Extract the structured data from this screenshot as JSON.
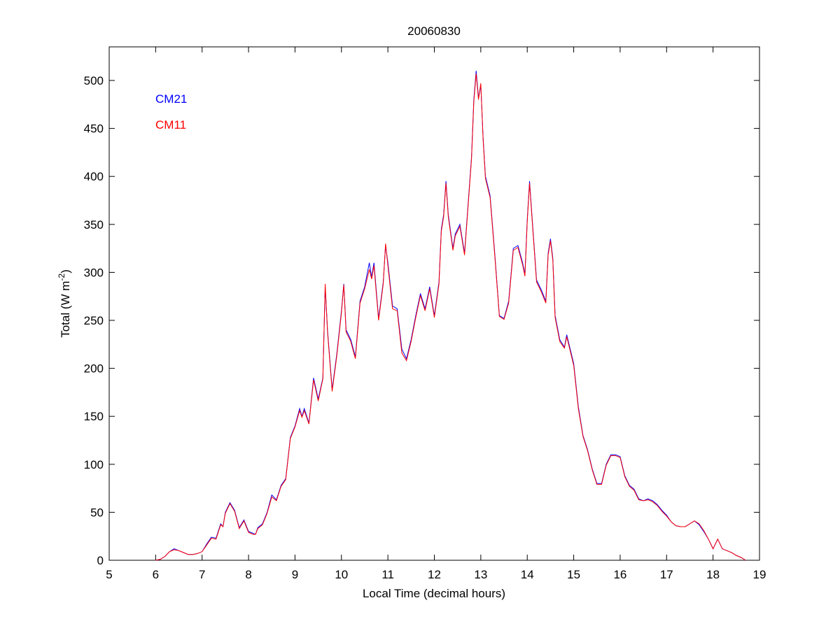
{
  "chart_data": {
    "type": "line",
    "title": "20060830",
    "xlabel": "Local Time (decimal hours)",
    "ylabel": [
      "Total (W m",
      "-2",
      ")"
    ],
    "x": [
      6.0,
      6.1,
      6.2,
      6.3,
      6.4,
      6.5,
      6.6,
      6.7,
      6.8,
      6.9,
      7.0,
      7.1,
      7.2,
      7.3,
      7.4,
      7.45,
      7.5,
      7.6,
      7.7,
      7.8,
      7.9,
      8.0,
      8.1,
      8.15,
      8.2,
      8.3,
      8.4,
      8.5,
      8.6,
      8.7,
      8.8,
      8.9,
      9.0,
      9.1,
      9.15,
      9.2,
      9.3,
      9.4,
      9.5,
      9.6,
      9.65,
      9.7,
      9.8,
      9.9,
      10.0,
      10.05,
      10.1,
      10.2,
      10.3,
      10.4,
      10.5,
      10.6,
      10.65,
      10.7,
      10.8,
      10.9,
      10.95,
      11.0,
      11.1,
      11.2,
      11.3,
      11.4,
      11.5,
      11.6,
      11.7,
      11.8,
      11.9,
      12.0,
      12.1,
      12.15,
      12.2,
      12.25,
      12.3,
      12.4,
      12.45,
      12.55,
      12.65,
      12.8,
      12.85,
      12.9,
      12.95,
      13.0,
      13.05,
      13.1,
      13.2,
      13.3,
      13.4,
      13.5,
      13.6,
      13.7,
      13.8,
      13.9,
      13.95,
      14.0,
      14.05,
      14.1,
      14.2,
      14.3,
      14.4,
      14.45,
      14.5,
      14.55,
      14.6,
      14.7,
      14.8,
      14.85,
      14.9,
      15.0,
      15.1,
      15.2,
      15.3,
      15.4,
      15.5,
      15.6,
      15.7,
      15.8,
      15.9,
      16.0,
      16.1,
      16.2,
      16.3,
      16.4,
      16.5,
      16.6,
      16.7,
      16.8,
      16.9,
      17.0,
      17.1,
      17.2,
      17.3,
      17.4,
      17.5,
      17.6,
      17.7,
      17.8,
      17.9,
      18.0,
      18.1,
      18.2,
      18.3,
      18.4,
      18.5,
      18.6,
      18.7
    ],
    "series": [
      {
        "name": "CM21",
        "color": "#0000ff",
        "values": [
          0,
          1,
          4,
          9,
          12,
          10,
          8,
          6,
          6,
          7,
          9,
          17,
          24,
          23,
          38,
          35,
          50,
          60,
          52,
          34,
          42,
          30,
          28,
          27,
          34,
          38,
          50,
          68,
          63,
          78,
          85,
          128,
          140,
          158,
          150,
          158,
          143,
          190,
          168,
          190,
          285,
          240,
          178,
          215,
          260,
          288,
          240,
          230,
          212,
          270,
          285,
          310,
          295,
          310,
          252,
          290,
          328,
          310,
          265,
          262,
          220,
          210,
          230,
          255,
          278,
          262,
          285,
          255,
          290,
          345,
          360,
          395,
          360,
          325,
          340,
          350,
          320,
          420,
          480,
          510,
          482,
          495,
          440,
          400,
          380,
          320,
          255,
          252,
          270,
          325,
          328,
          310,
          298,
          355,
          395,
          360,
          292,
          282,
          270,
          320,
          335,
          315,
          255,
          230,
          222,
          235,
          225,
          205,
          160,
          130,
          115,
          95,
          80,
          80,
          100,
          110,
          110,
          108,
          88,
          78,
          74,
          64,
          62,
          64,
          62,
          58,
          52,
          47,
          40,
          36,
          35,
          35,
          38,
          41,
          37,
          30,
          22,
          12,
          22,
          12,
          10,
          8,
          5,
          3,
          0
        ]
      },
      {
        "name": "CM11",
        "color": "#ff0000",
        "values": [
          0,
          1,
          4,
          9,
          11,
          10,
          8,
          6,
          6,
          7,
          9,
          16,
          23,
          22,
          37,
          35,
          49,
          59,
          51,
          33,
          41,
          29,
          27,
          27,
          33,
          37,
          49,
          66,
          62,
          77,
          84,
          127,
          139,
          156,
          149,
          156,
          142,
          188,
          166,
          189,
          288,
          238,
          176,
          213,
          258,
          287,
          238,
          228,
          210,
          268,
          283,
          303,
          293,
          307,
          250,
          288,
          330,
          307,
          262,
          260,
          216,
          208,
          228,
          253,
          276,
          260,
          283,
          253,
          288,
          343,
          358,
          393,
          358,
          323,
          338,
          348,
          318,
          418,
          478,
          507,
          480,
          497,
          438,
          398,
          378,
          318,
          254,
          251,
          268,
          323,
          326,
          308,
          296,
          353,
          393,
          358,
          290,
          280,
          268,
          318,
          333,
          313,
          253,
          228,
          221,
          233,
          223,
          203,
          158,
          129,
          114,
          94,
          79,
          79,
          99,
          109,
          109,
          107,
          87,
          77,
          73,
          63,
          62,
          63,
          61,
          57,
          51,
          46,
          40,
          36,
          35,
          35,
          38,
          41,
          38,
          31,
          22,
          12,
          22,
          12,
          10,
          8,
          5,
          3,
          0
        ]
      }
    ],
    "xlim": [
      5,
      19
    ],
    "xticks": [
      5,
      6,
      7,
      8,
      9,
      10,
      11,
      12,
      13,
      14,
      15,
      16,
      17,
      18,
      19
    ],
    "ylim": [
      0,
      535
    ],
    "yticks": [
      0,
      50,
      100,
      150,
      200,
      250,
      300,
      350,
      400,
      450,
      500
    ],
    "grid": false,
    "legend": "upper left"
  }
}
